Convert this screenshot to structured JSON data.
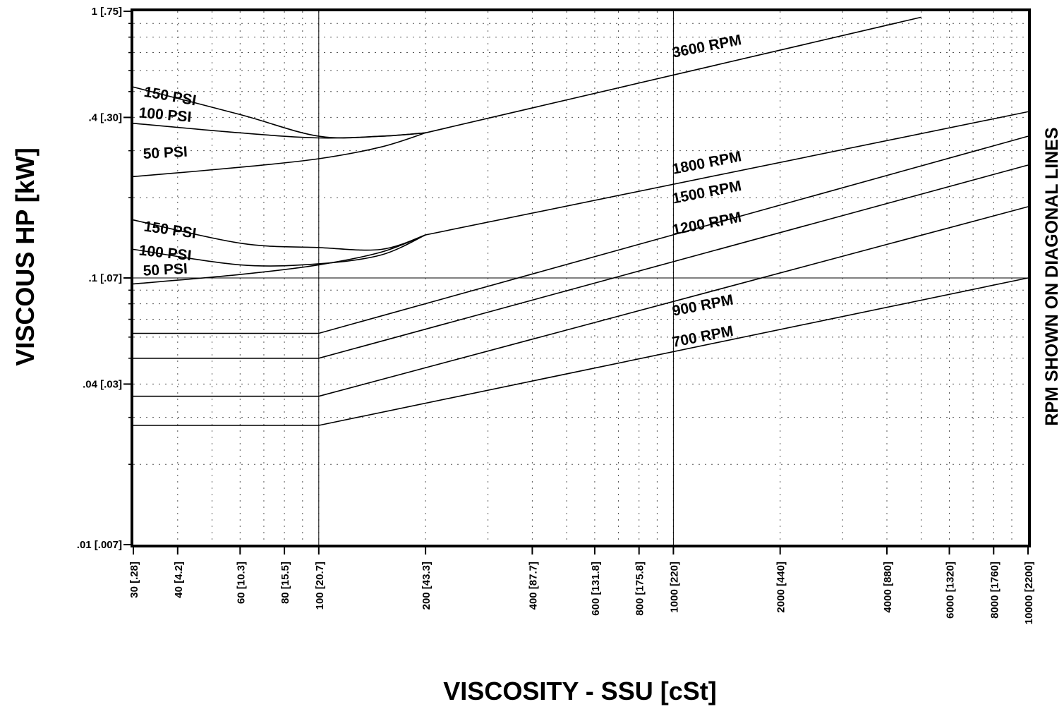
{
  "chart_data": {
    "type": "line",
    "title": "",
    "xlabel": "VISCOSITY - SSU [cSt]",
    "ylabel": "VISCOUS HP [kW]",
    "right_label": "RPM SHOWN ON DIAGONAL LINES",
    "x_scale": "log",
    "y_scale": "log",
    "xlim": [
      30,
      10000
    ],
    "ylim": [
      0.01,
      1
    ],
    "grid": true,
    "x_ticks": [
      {
        "value": 30,
        "label": "30 [.28]"
      },
      {
        "value": 40,
        "label": "40 [4.2]"
      },
      {
        "value": 60,
        "label": "60 [10.3]"
      },
      {
        "value": 80,
        "label": "80 [15.5]"
      },
      {
        "value": 100,
        "label": "100 [20.7]"
      },
      {
        "value": 200,
        "label": "200 [43.3]"
      },
      {
        "value": 400,
        "label": "400 [87.7]"
      },
      {
        "value": 600,
        "label": "600 [131.8]"
      },
      {
        "value": 800,
        "label": "800 [175.8]"
      },
      {
        "value": 1000,
        "label": "1000 [220]"
      },
      {
        "value": 2000,
        "label": "2000 [440]"
      },
      {
        "value": 4000,
        "label": "4000 [880]"
      },
      {
        "value": 6000,
        "label": "6000 [1320]"
      },
      {
        "value": 8000,
        "label": "8000 [1760]"
      },
      {
        "value": 10000,
        "label": "10000 [2200]"
      }
    ],
    "y_ticks": [
      {
        "value": 1,
        "label": "1 [.75]"
      },
      {
        "value": 0.4,
        "label": ".4 [.30]"
      },
      {
        "value": 0.1,
        "label": ".1 [.07]"
      },
      {
        "value": 0.04,
        "label": ".04 [.03]"
      },
      {
        "value": 0.01,
        "label": ".01 [.007]"
      }
    ],
    "series": [
      {
        "name": "3600 RPM",
        "x": [
          200,
          5000
        ],
        "y": [
          0.35,
          0.95
        ],
        "label_at": [
          1000,
          0.67
        ],
        "label_angle": -11
      },
      {
        "name": "150 PSI",
        "x": [
          30,
          60,
          100,
          150,
          200
        ],
        "y": [
          0.52,
          0.41,
          0.34,
          0.34,
          0.35
        ],
        "label_at": [
          32,
          0.48
        ],
        "label_angle": 10
      },
      {
        "name": "100 PSI",
        "x": [
          30,
          60,
          100,
          150,
          200
        ],
        "y": [
          0.38,
          0.35,
          0.335,
          0.34,
          0.35
        ],
        "label_at": [
          31,
          0.4
        ],
        "label_angle": 5
      },
      {
        "name": "50 PSI",
        "x": [
          30,
          60,
          100,
          150,
          200
        ],
        "y": [
          0.24,
          0.26,
          0.28,
          0.31,
          0.35
        ],
        "label_at": [
          32,
          0.28
        ],
        "label_angle": -3
      },
      {
        "name": "1800 RPM",
        "x": [
          200,
          10000
        ],
        "y": [
          0.145,
          0.42
        ],
        "label_at": [
          1000,
          0.245
        ],
        "label_angle": -11
      },
      {
        "name": "150 PSI",
        "x": [
          30,
          60,
          100,
          150,
          200
        ],
        "y": [
          0.165,
          0.135,
          0.13,
          0.128,
          0.145
        ],
        "label_at": [
          32,
          0.15
        ],
        "label_angle": 8
      },
      {
        "name": "100 PSI",
        "x": [
          30,
          60,
          100,
          150,
          200
        ],
        "y": [
          0.128,
          0.112,
          0.113,
          0.122,
          0.145
        ],
        "label_at": [
          31,
          0.122
        ],
        "label_angle": 6
      },
      {
        "name": "50 PSI",
        "x": [
          30,
          60,
          100,
          150,
          200
        ],
        "y": [
          0.095,
          0.103,
          0.112,
          0.125,
          0.145
        ],
        "label_at": [
          32,
          0.102
        ],
        "label_angle": -3
      },
      {
        "name": "1500 RPM",
        "x": [
          30,
          100,
          10000
        ],
        "y": [
          0.062,
          0.062,
          0.34
        ],
        "label_at": [
          1000,
          0.19
        ],
        "label_angle": -11
      },
      {
        "name": "1200 RPM",
        "x": [
          30,
          100,
          10000
        ],
        "y": [
          0.05,
          0.05,
          0.265
        ],
        "label_at": [
          1000,
          0.145
        ],
        "label_angle": -11
      },
      {
        "name": "900 RPM",
        "x": [
          30,
          100,
          10000
        ],
        "y": [
          0.036,
          0.036,
          0.185
        ],
        "label_at": [
          1000,
          0.072
        ],
        "label_angle": -11
      },
      {
        "name": "700 RPM",
        "x": [
          30,
          100,
          10000
        ],
        "y": [
          0.028,
          0.028,
          0.1
        ],
        "label_at": [
          1000,
          0.055
        ],
        "label_angle": -11
      }
    ]
  }
}
